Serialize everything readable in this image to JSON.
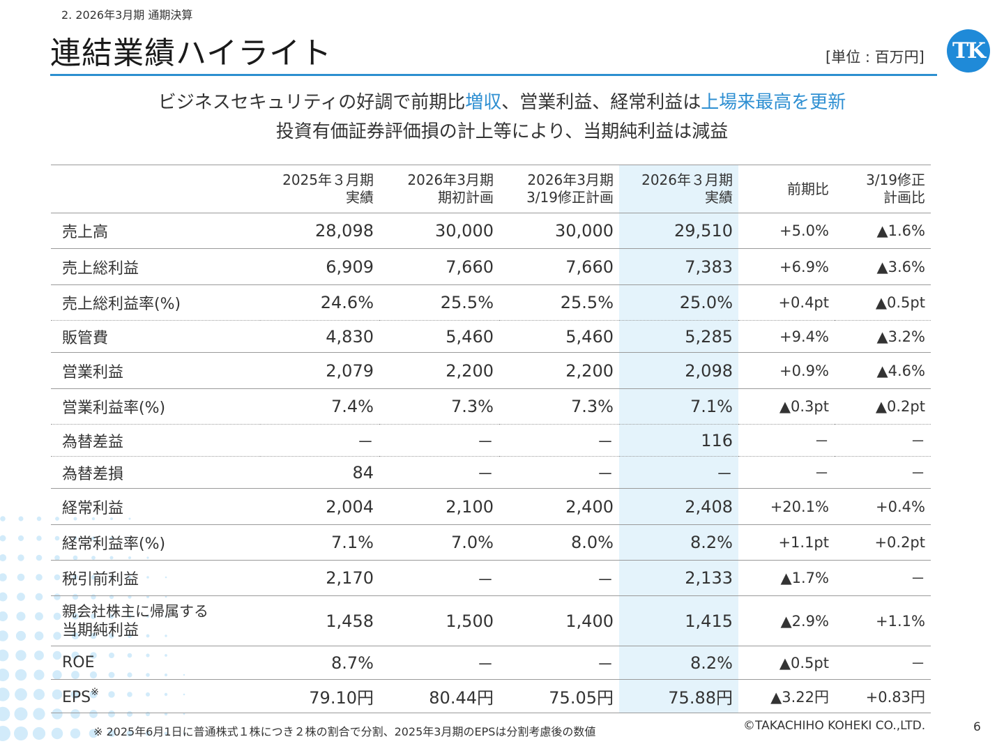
{
  "header": {
    "section": "2. 2026年3月期 通期決算",
    "title": "連結業績ハイライト",
    "unit": "[単位 : 百万円]",
    "logo_text": "TK",
    "accent_color": "#2c8fd0"
  },
  "headline": {
    "line1_a": "ビジネスセキュリティの好調で前期比",
    "line1_hl1": "増収",
    "line1_b": "、営業利益、経常利益は",
    "line1_hl2": "上場来最高を更新",
    "line2": "投資有価証券評価損の計上等により、当期純利益は減益"
  },
  "table": {
    "columns": [
      {
        "line1": "",
        "line2": ""
      },
      {
        "line1": "2025年３月期",
        "line2": "実績"
      },
      {
        "line1": "2026年3月期",
        "line2": "期初計画"
      },
      {
        "line1": "2026年3月期",
        "line2": "3/19修正計画"
      },
      {
        "line1": "2026年３月期",
        "line2": "実績"
      },
      {
        "line1": "",
        "line2": "前期比"
      },
      {
        "line1": "3/19修正",
        "line2": "計画比"
      }
    ],
    "highlight_color": "#e4f3fb",
    "rows": [
      {
        "label": "売上高",
        "cells": [
          "28,098",
          "30,000",
          "30,000",
          "29,510",
          "+5.0%",
          "▲1.6%"
        ]
      },
      {
        "label": "売上総利益",
        "cells": [
          "6,909",
          "7,660",
          "7,660",
          "7,383",
          "+6.9%",
          "▲3.6%"
        ]
      },
      {
        "label": "売上総利益率(%)",
        "cells": [
          "24.6%",
          "25.5%",
          "25.5%",
          "25.0%",
          "+0.4pt",
          "▲0.5pt"
        ]
      },
      {
        "label": "販管費",
        "cells": [
          "4,830",
          "5,460",
          "5,460",
          "5,285",
          "+9.4%",
          "▲3.2%"
        ]
      },
      {
        "label": "営業利益",
        "cells": [
          "2,079",
          "2,200",
          "2,200",
          "2,098",
          "+0.9%",
          "▲4.6%"
        ]
      },
      {
        "label": "営業利益率(%)",
        "cells": [
          "7.4%",
          "7.3%",
          "7.3%",
          "7.1%",
          "▲0.3pt",
          "▲0.2pt"
        ]
      },
      {
        "label": "為替差益",
        "cells": [
          "－",
          "－",
          "－",
          "116",
          "－",
          "－"
        ]
      },
      {
        "label": "為替差損",
        "cells": [
          "84",
          "－",
          "－",
          "－",
          "－",
          "－"
        ]
      },
      {
        "label": "経常利益",
        "cells": [
          "2,004",
          "2,100",
          "2,400",
          "2,408",
          "+20.1%",
          "+0.4%"
        ]
      },
      {
        "label": "経常利益率(%)",
        "cells": [
          "7.1%",
          "7.0%",
          "8.0%",
          "8.2%",
          "+1.1pt",
          "+0.2pt"
        ]
      },
      {
        "label": "税引前利益",
        "cells": [
          "2,170",
          "－",
          "－",
          "2,133",
          "▲1.7%",
          "－"
        ]
      },
      {
        "label": "親会社株主に帰属する",
        "label2": "当期純利益",
        "cells": [
          "1,458",
          "1,500",
          "1,400",
          "1,415",
          "▲2.9%",
          "+1.1%"
        ]
      },
      {
        "label": "ROE",
        "cells": [
          "8.7%",
          "－",
          "－",
          "8.2%",
          "▲0.5pt",
          "－"
        ]
      },
      {
        "label": "EPS",
        "label_note": "※",
        "cells": [
          "79.10円",
          "80.44円",
          "75.05円",
          "75.88円",
          "▲3.22円",
          "+0.83円"
        ]
      }
    ]
  },
  "footer": {
    "footnote": "※ 2025年6月1日に普通株式１株につき２株の割合で分割、2025年3月期のEPSは分割考慮後の数値",
    "copyright": "©TAKACHIHO KOHEKI CO.,LTD.",
    "page": "6"
  }
}
